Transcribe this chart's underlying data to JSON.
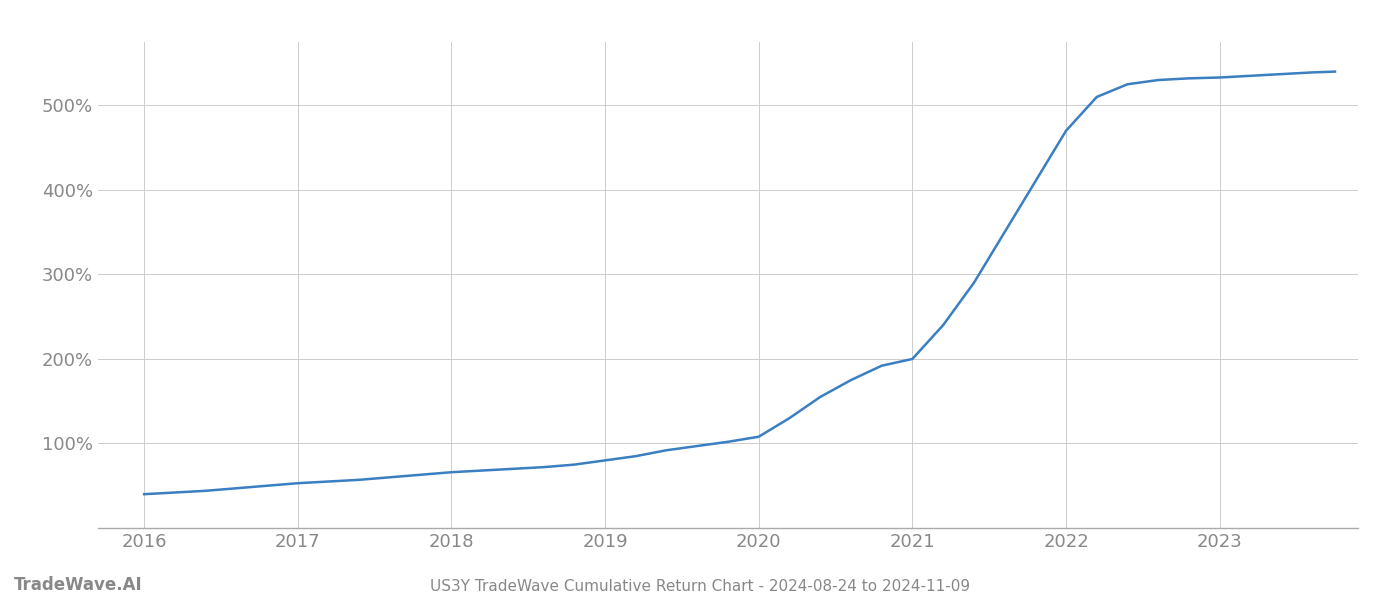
{
  "title": "US3Y TradeWave Cumulative Return Chart - 2024-08-24 to 2024-11-09",
  "watermark": "TradeWave.AI",
  "line_color": "#3a7fc1",
  "line_width": 1.8,
  "background_color": "#ffffff",
  "grid_color": "#cccccc",
  "x_values": [
    2016.0,
    2016.2,
    2016.4,
    2016.6,
    2016.8,
    2017.0,
    2017.2,
    2017.4,
    2017.6,
    2017.8,
    2018.0,
    2018.2,
    2018.4,
    2018.6,
    2018.8,
    2019.0,
    2019.2,
    2019.4,
    2019.6,
    2019.8,
    2020.0,
    2020.2,
    2020.4,
    2020.6,
    2020.8,
    2021.0,
    2021.2,
    2021.4,
    2021.6,
    2021.8,
    2022.0,
    2022.2,
    2022.4,
    2022.6,
    2022.8,
    2023.0,
    2023.2,
    2023.4,
    2023.6,
    2023.75
  ],
  "y_values": [
    40,
    42,
    44,
    47,
    50,
    53,
    55,
    57,
    60,
    63,
    66,
    68,
    70,
    72,
    75,
    80,
    85,
    92,
    97,
    102,
    108,
    130,
    155,
    175,
    192,
    200,
    240,
    290,
    350,
    410,
    470,
    510,
    525,
    530,
    532,
    533,
    535,
    537,
    539,
    540
  ],
  "yticks": [
    100,
    200,
    300,
    400,
    500
  ],
  "xticks": [
    2016,
    2017,
    2018,
    2019,
    2020,
    2021,
    2022,
    2023
  ],
  "xlim": [
    2015.7,
    2023.9
  ],
  "ylim": [
    0,
    575
  ],
  "title_fontsize": 11,
  "watermark_fontsize": 12,
  "tick_fontsize": 13,
  "tick_color": "#888888"
}
